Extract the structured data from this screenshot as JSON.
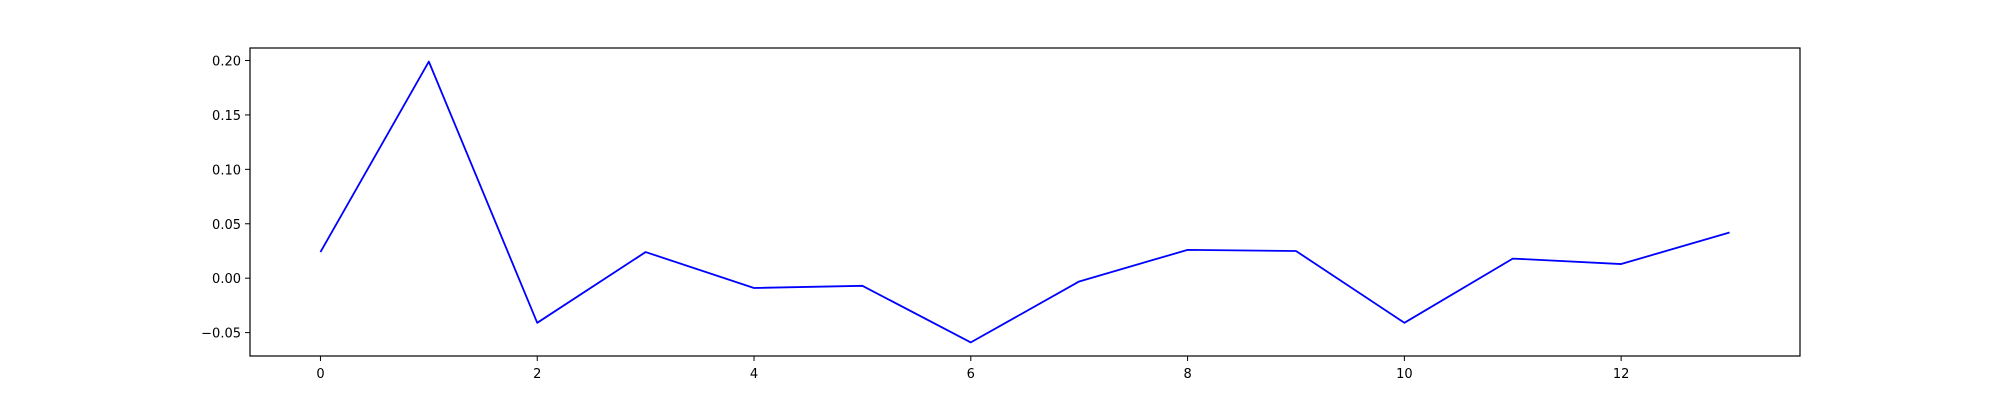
{
  "chart_data": {
    "type": "line",
    "title": "",
    "xlabel": "",
    "ylabel": "",
    "x": [
      0,
      1,
      2,
      3,
      4,
      5,
      6,
      7,
      8,
      9,
      10,
      11,
      12,
      13
    ],
    "series": [
      {
        "color": "#0000ff",
        "values": [
          0.024,
          0.199,
          -0.041,
          0.024,
          -0.009,
          -0.007,
          -0.059,
          -0.003,
          0.026,
          0.025,
          -0.041,
          0.018,
          0.013,
          0.042
        ]
      }
    ],
    "xlim": [
      -0.65,
      13.65
    ],
    "ylim": [
      -0.0715,
      0.2115
    ],
    "xticks": [
      0,
      2,
      4,
      6,
      8,
      10,
      12
    ],
    "xtick_labels": [
      "0",
      "2",
      "4",
      "6",
      "8",
      "10",
      "12"
    ],
    "yticks": [
      -0.05,
      0.0,
      0.05,
      0.1,
      0.15,
      0.2
    ],
    "ytick_labels": [
      "−0.05",
      "0.00",
      "0.05",
      "0.10",
      "0.15",
      "0.20"
    ],
    "grid": false,
    "legend": "none"
  }
}
